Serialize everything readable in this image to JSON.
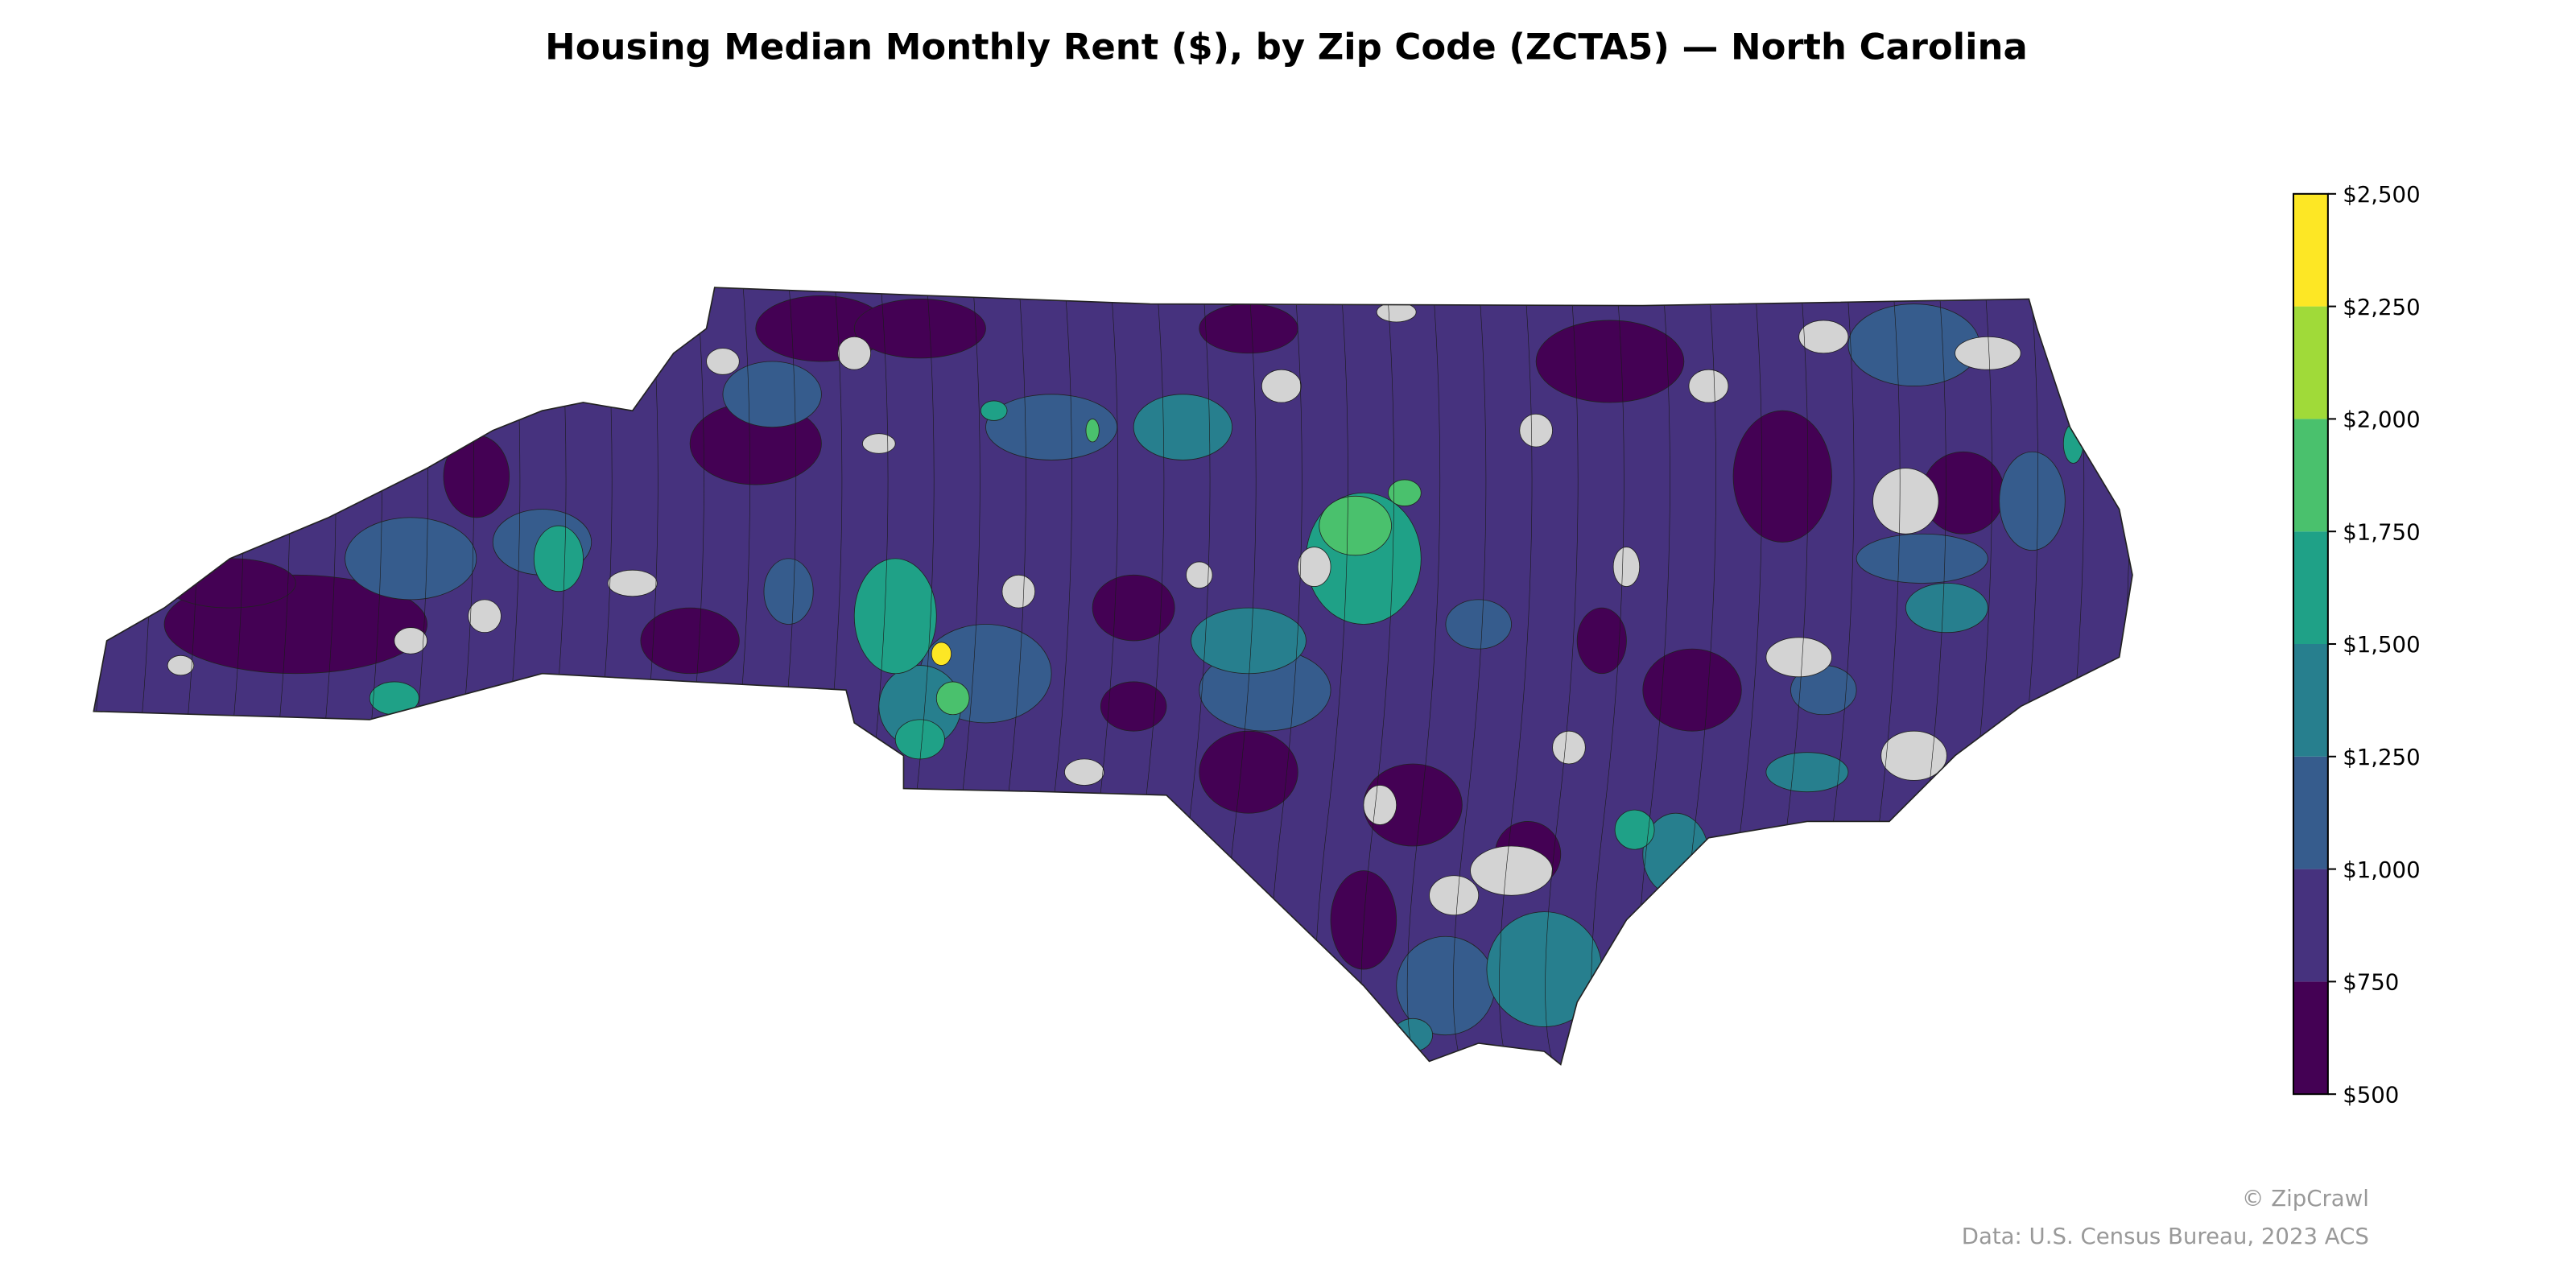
{
  "chart_data": {
    "type": "choropleth",
    "title": "Housing Median Monthly Rent ($), by Zip Code (ZCTA5) — North Carolina",
    "region": "North Carolina",
    "unit": "ZCTA5",
    "colorbar": {
      "range": [
        500,
        2500
      ],
      "ticks": [
        "$500",
        "$750",
        "$1,000",
        "$1,250",
        "$1,500",
        "$1,750",
        "$2,000",
        "$2,250",
        "$2,500"
      ],
      "bins": [
        {
          "min": 500,
          "max": 750,
          "color": "#440154"
        },
        {
          "min": 750,
          "max": 1000,
          "color": "#46327e"
        },
        {
          "min": 1000,
          "max": 1250,
          "color": "#365c8d"
        },
        {
          "min": 1250,
          "max": 1500,
          "color": "#277f8e"
        },
        {
          "min": 1500,
          "max": 1750,
          "color": "#1fa187"
        },
        {
          "min": 1750,
          "max": 2000,
          "color": "#4ac16d"
        },
        {
          "min": 2000,
          "max": 2250,
          "color": "#a0da39"
        },
        {
          "min": 2250,
          "max": 2500,
          "color": "#fde725"
        }
      ],
      "no_data_color": "#d3d3d3"
    }
  },
  "footer": {
    "credit": "© ZipCrawl",
    "source": "Data: U.S. Census Bureau, 2023 ACS"
  }
}
